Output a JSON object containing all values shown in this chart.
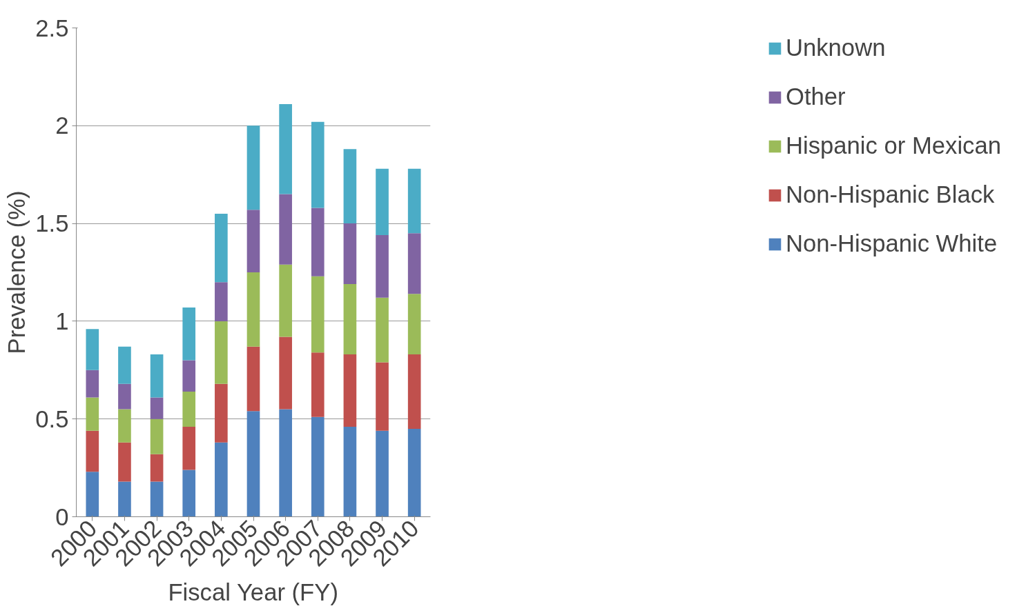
{
  "chart_data": {
    "type": "bar",
    "stacked": true,
    "xlabel": "Fiscal Year (FY)",
    "ylabel": "Prevalence (%)",
    "categories": [
      "2000",
      "2001",
      "2002",
      "2003",
      "2004",
      "2005",
      "2006",
      "2007",
      "2008",
      "2009",
      "2010"
    ],
    "series": [
      {
        "name": "Non-Hispanic White",
        "color": "#4f81bd",
        "values": [
          0.23,
          0.18,
          0.18,
          0.24,
          0.38,
          0.54,
          0.55,
          0.51,
          0.46,
          0.44,
          0.45
        ]
      },
      {
        "name": "Non-Hispanic Black",
        "color": "#c0504d",
        "values": [
          0.21,
          0.2,
          0.14,
          0.22,
          0.3,
          0.33,
          0.37,
          0.33,
          0.37,
          0.35,
          0.38
        ]
      },
      {
        "name": "Hispanic or Mexican",
        "color": "#9bbb59",
        "values": [
          0.17,
          0.17,
          0.18,
          0.18,
          0.32,
          0.38,
          0.37,
          0.39,
          0.36,
          0.33,
          0.31
        ]
      },
      {
        "name": "Other",
        "color": "#8064a2",
        "values": [
          0.14,
          0.13,
          0.11,
          0.16,
          0.2,
          0.32,
          0.36,
          0.35,
          0.31,
          0.32,
          0.31
        ]
      },
      {
        "name": "Unknown",
        "color": "#4bacc6",
        "values": [
          0.21,
          0.19,
          0.22,
          0.27,
          0.35,
          0.43,
          0.46,
          0.44,
          0.38,
          0.34,
          0.33
        ]
      }
    ],
    "ylim": [
      0,
      2.5
    ],
    "yticks": [
      0,
      0.5,
      1,
      1.5,
      2,
      2.5
    ],
    "grid": "y",
    "legend": "right"
  }
}
